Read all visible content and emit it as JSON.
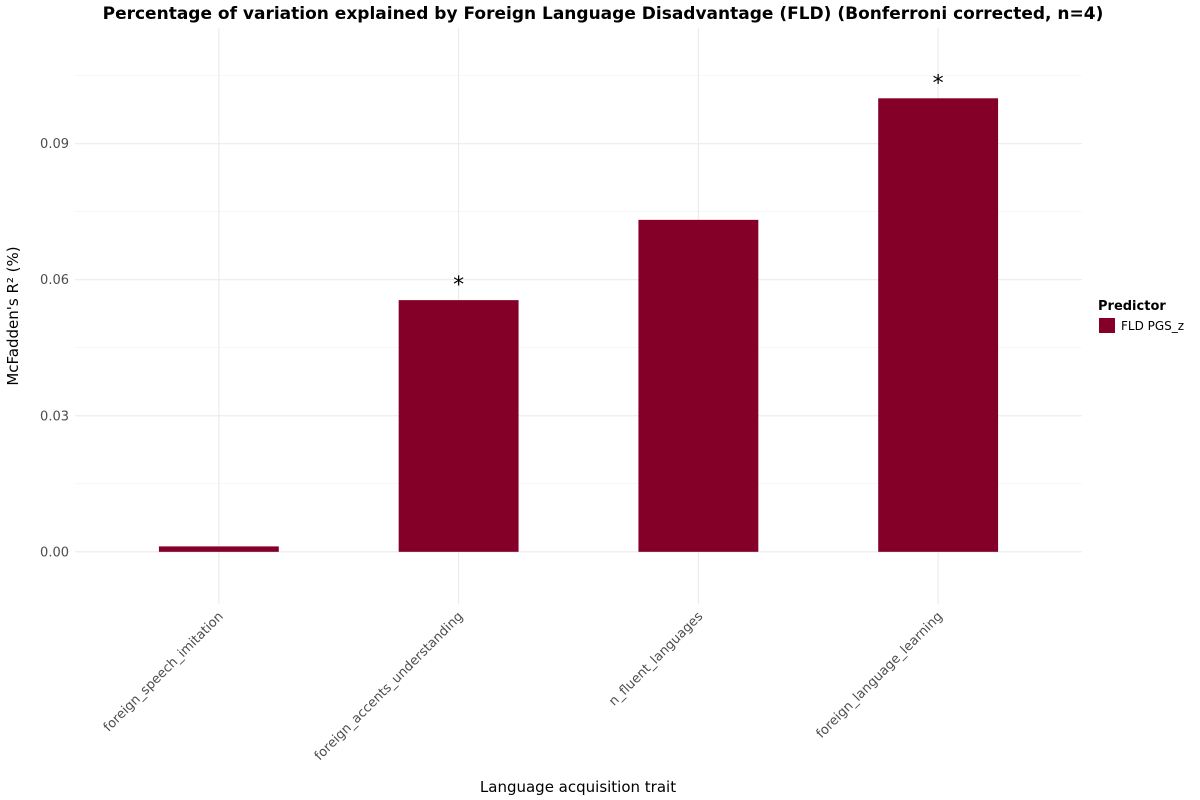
{
  "chart_data": {
    "type": "bar",
    "title": "Percentage of variation explained by Foreign Language Disadvantage (FLD) (Bonferroni corrected, n=4)",
    "xlabel": "Language acquisition trait",
    "ylabel": "McFadden's R² (%)",
    "categories": [
      "foreign_speech_imitation",
      "foreign_accents_understanding",
      "n_fluent_languages",
      "foreign_language_learning"
    ],
    "series": [
      {
        "name": "FLD PGS_z",
        "values": [
          0.0012,
          0.0555,
          0.0732,
          0.1
        ],
        "color": "#850029"
      }
    ],
    "significance": [
      "",
      "*",
      "",
      "*"
    ],
    "ylim": [
      -0.0115,
      0.1155
    ],
    "yticks": [
      0.0,
      0.03,
      0.06,
      0.09
    ],
    "ytick_labels": [
      "0.00",
      "0.03",
      "0.06",
      "0.09"
    ],
    "grid": true,
    "legend": {
      "title": "Predictor",
      "position": "right"
    }
  }
}
